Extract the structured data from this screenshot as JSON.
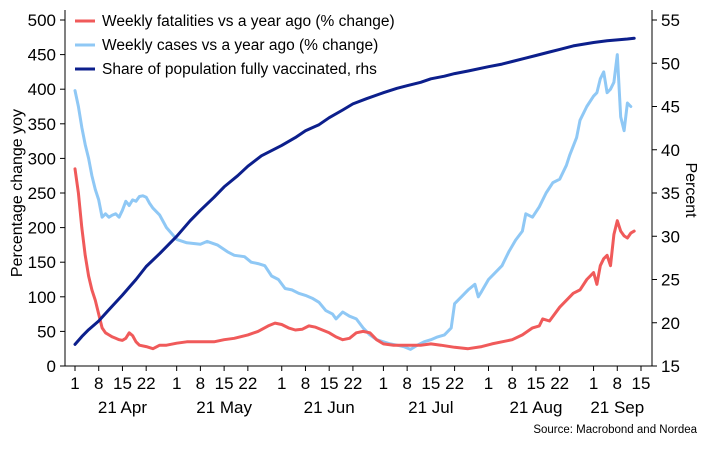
{
  "chart_data": {
    "type": "line",
    "source": "Source: Macrobond and Nordea",
    "ylabel": "Percentage change yoy",
    "ylabel_right": "Percent",
    "ylim": [
      0,
      500
    ],
    "ylim_right": [
      15,
      55
    ],
    "yticks": [
      0,
      50,
      100,
      150,
      200,
      250,
      300,
      350,
      400,
      450,
      500
    ],
    "yticks_right": [
      15,
      20,
      25,
      30,
      35,
      40,
      45,
      50,
      55
    ],
    "xlim": [
      "2021-03-31",
      "2021-09-16"
    ],
    "x_day_ticks": [
      {
        "date": "2021-04-01",
        "label": "1"
      },
      {
        "date": "2021-04-08",
        "label": "8"
      },
      {
        "date": "2021-04-15",
        "label": "15"
      },
      {
        "date": "2021-04-22",
        "label": "22"
      },
      {
        "date": "2021-05-01",
        "label": "1"
      },
      {
        "date": "2021-05-08",
        "label": "8"
      },
      {
        "date": "2021-05-15",
        "label": "15"
      },
      {
        "date": "2021-05-22",
        "label": "22"
      },
      {
        "date": "2021-06-01",
        "label": "1"
      },
      {
        "date": "2021-06-08",
        "label": "8"
      },
      {
        "date": "2021-06-15",
        "label": "15"
      },
      {
        "date": "2021-06-22",
        "label": "22"
      },
      {
        "date": "2021-07-01",
        "label": "1"
      },
      {
        "date": "2021-07-08",
        "label": "8"
      },
      {
        "date": "2021-07-15",
        "label": "15"
      },
      {
        "date": "2021-07-22",
        "label": "22"
      },
      {
        "date": "2021-08-01",
        "label": "1"
      },
      {
        "date": "2021-08-08",
        "label": "8"
      },
      {
        "date": "2021-08-15",
        "label": "15"
      },
      {
        "date": "2021-08-22",
        "label": "22"
      },
      {
        "date": "2021-09-01",
        "label": "1"
      },
      {
        "date": "2021-09-08",
        "label": "8"
      },
      {
        "date": "2021-09-15",
        "label": "15"
      }
    ],
    "x_month_labels": [
      {
        "date": "2021-04-15",
        "label": "21 Apr"
      },
      {
        "date": "2021-05-15",
        "label": "21 May"
      },
      {
        "date": "2021-06-15",
        "label": "21 Jun"
      },
      {
        "date": "2021-07-15",
        "label": "21 Jul"
      },
      {
        "date": "2021-08-15",
        "label": "21 Aug"
      },
      {
        "date": "2021-09-08",
        "label": "21 Sep"
      }
    ],
    "legend_position": "top-left",
    "series": [
      {
        "name": "Weekly fatalities vs a year ago (% change)",
        "color": "#f05a5a",
        "axis": "left",
        "points": [
          [
            "2021-04-01",
            285
          ],
          [
            "2021-04-02",
            250
          ],
          [
            "2021-04-03",
            200
          ],
          [
            "2021-04-04",
            160
          ],
          [
            "2021-04-05",
            130
          ],
          [
            "2021-04-06",
            110
          ],
          [
            "2021-04-07",
            95
          ],
          [
            "2021-04-08",
            75
          ],
          [
            "2021-04-09",
            55
          ],
          [
            "2021-04-10",
            48
          ],
          [
            "2021-04-11",
            45
          ],
          [
            "2021-04-12",
            42
          ],
          [
            "2021-04-13",
            40
          ],
          [
            "2021-04-14",
            38
          ],
          [
            "2021-04-15",
            37
          ],
          [
            "2021-04-16",
            40
          ],
          [
            "2021-04-17",
            48
          ],
          [
            "2021-04-18",
            44
          ],
          [
            "2021-04-19",
            35
          ],
          [
            "2021-04-20",
            30
          ],
          [
            "2021-04-22",
            28
          ],
          [
            "2021-04-24",
            25
          ],
          [
            "2021-04-26",
            30
          ],
          [
            "2021-04-28",
            30
          ],
          [
            "2021-05-01",
            33
          ],
          [
            "2021-05-04",
            35
          ],
          [
            "2021-05-08",
            35
          ],
          [
            "2021-05-12",
            35
          ],
          [
            "2021-05-15",
            38
          ],
          [
            "2021-05-18",
            40
          ],
          [
            "2021-05-22",
            45
          ],
          [
            "2021-05-25",
            50
          ],
          [
            "2021-05-28",
            58
          ],
          [
            "2021-05-30",
            62
          ],
          [
            "2021-06-01",
            60
          ],
          [
            "2021-06-03",
            55
          ],
          [
            "2021-06-05",
            52
          ],
          [
            "2021-06-07",
            53
          ],
          [
            "2021-06-09",
            58
          ],
          [
            "2021-06-11",
            56
          ],
          [
            "2021-06-13",
            52
          ],
          [
            "2021-06-15",
            48
          ],
          [
            "2021-06-17",
            42
          ],
          [
            "2021-06-19",
            38
          ],
          [
            "2021-06-21",
            40
          ],
          [
            "2021-06-23",
            48
          ],
          [
            "2021-06-25",
            50
          ],
          [
            "2021-06-27",
            48
          ],
          [
            "2021-06-29",
            38
          ],
          [
            "2021-07-01",
            32
          ],
          [
            "2021-07-04",
            30
          ],
          [
            "2021-07-08",
            30
          ],
          [
            "2021-07-12",
            30
          ],
          [
            "2021-07-15",
            32
          ],
          [
            "2021-07-18",
            30
          ],
          [
            "2021-07-22",
            27
          ],
          [
            "2021-07-26",
            25
          ],
          [
            "2021-07-30",
            28
          ],
          [
            "2021-08-02",
            32
          ],
          [
            "2021-08-05",
            35
          ],
          [
            "2021-08-08",
            38
          ],
          [
            "2021-08-11",
            45
          ],
          [
            "2021-08-14",
            55
          ],
          [
            "2021-08-16",
            58
          ],
          [
            "2021-08-17",
            68
          ],
          [
            "2021-08-19",
            65
          ],
          [
            "2021-08-22",
            85
          ],
          [
            "2021-08-24",
            95
          ],
          [
            "2021-08-26",
            105
          ],
          [
            "2021-08-28",
            110
          ],
          [
            "2021-08-30",
            125
          ],
          [
            "2021-09-01",
            135
          ],
          [
            "2021-09-02",
            118
          ],
          [
            "2021-09-03",
            145
          ],
          [
            "2021-09-04",
            155
          ],
          [
            "2021-09-05",
            160
          ],
          [
            "2021-09-06",
            145
          ],
          [
            "2021-09-07",
            190
          ],
          [
            "2021-09-08",
            210
          ],
          [
            "2021-09-09",
            195
          ],
          [
            "2021-09-10",
            188
          ],
          [
            "2021-09-11",
            185
          ],
          [
            "2021-09-12",
            192
          ],
          [
            "2021-09-13",
            195
          ]
        ]
      },
      {
        "name": "Weekly cases vs a year ago (% change)",
        "color": "#8fc8f5",
        "axis": "left",
        "points": [
          [
            "2021-04-01",
            398
          ],
          [
            "2021-04-02",
            375
          ],
          [
            "2021-04-03",
            345
          ],
          [
            "2021-04-04",
            320
          ],
          [
            "2021-04-05",
            300
          ],
          [
            "2021-04-06",
            275
          ],
          [
            "2021-04-07",
            255
          ],
          [
            "2021-04-08",
            240
          ],
          [
            "2021-04-09",
            215
          ],
          [
            "2021-04-10",
            220
          ],
          [
            "2021-04-11",
            215
          ],
          [
            "2021-04-12",
            218
          ],
          [
            "2021-04-13",
            220
          ],
          [
            "2021-04-14",
            215
          ],
          [
            "2021-04-15",
            225
          ],
          [
            "2021-04-16",
            238
          ],
          [
            "2021-04-17",
            232
          ],
          [
            "2021-04-18",
            240
          ],
          [
            "2021-04-19",
            238
          ],
          [
            "2021-04-20",
            245
          ],
          [
            "2021-04-21",
            246
          ],
          [
            "2021-04-22",
            244
          ],
          [
            "2021-04-23",
            235
          ],
          [
            "2021-04-24",
            228
          ],
          [
            "2021-04-26",
            218
          ],
          [
            "2021-04-28",
            200
          ],
          [
            "2021-05-01",
            183
          ],
          [
            "2021-05-04",
            178
          ],
          [
            "2021-05-08",
            176
          ],
          [
            "2021-05-10",
            180
          ],
          [
            "2021-05-13",
            175
          ],
          [
            "2021-05-16",
            165
          ],
          [
            "2021-05-18",
            160
          ],
          [
            "2021-05-21",
            158
          ],
          [
            "2021-05-23",
            150
          ],
          [
            "2021-05-25",
            148
          ],
          [
            "2021-05-27",
            145
          ],
          [
            "2021-05-29",
            130
          ],
          [
            "2021-05-31",
            125
          ],
          [
            "2021-06-02",
            112
          ],
          [
            "2021-06-04",
            110
          ],
          [
            "2021-06-06",
            105
          ],
          [
            "2021-06-08",
            102
          ],
          [
            "2021-06-10",
            98
          ],
          [
            "2021-06-12",
            92
          ],
          [
            "2021-06-14",
            80
          ],
          [
            "2021-06-16",
            75
          ],
          [
            "2021-06-17",
            68
          ],
          [
            "2021-06-19",
            78
          ],
          [
            "2021-06-21",
            72
          ],
          [
            "2021-06-23",
            68
          ],
          [
            "2021-06-25",
            55
          ],
          [
            "2021-06-27",
            45
          ],
          [
            "2021-06-29",
            38
          ],
          [
            "2021-07-01",
            35
          ],
          [
            "2021-07-03",
            32
          ],
          [
            "2021-07-05",
            30
          ],
          [
            "2021-07-07",
            28
          ],
          [
            "2021-07-09",
            24
          ],
          [
            "2021-07-11",
            30
          ],
          [
            "2021-07-13",
            35
          ],
          [
            "2021-07-15",
            38
          ],
          [
            "2021-07-17",
            42
          ],
          [
            "2021-07-19",
            45
          ],
          [
            "2021-07-21",
            55
          ],
          [
            "2021-07-22",
            90
          ],
          [
            "2021-07-24",
            100
          ],
          [
            "2021-07-26",
            110
          ],
          [
            "2021-07-28",
            118
          ],
          [
            "2021-07-29",
            100
          ],
          [
            "2021-07-30",
            108
          ],
          [
            "2021-08-01",
            125
          ],
          [
            "2021-08-03",
            135
          ],
          [
            "2021-08-05",
            145
          ],
          [
            "2021-08-07",
            165
          ],
          [
            "2021-08-09",
            182
          ],
          [
            "2021-08-11",
            195
          ],
          [
            "2021-08-12",
            220
          ],
          [
            "2021-08-14",
            215
          ],
          [
            "2021-08-16",
            230
          ],
          [
            "2021-08-18",
            250
          ],
          [
            "2021-08-20",
            265
          ],
          [
            "2021-08-22",
            270
          ],
          [
            "2021-08-24",
            290
          ],
          [
            "2021-08-25",
            305
          ],
          [
            "2021-08-27",
            330
          ],
          [
            "2021-08-28",
            355
          ],
          [
            "2021-08-30",
            375
          ],
          [
            "2021-09-01",
            390
          ],
          [
            "2021-09-02",
            395
          ],
          [
            "2021-09-03",
            415
          ],
          [
            "2021-09-04",
            425
          ],
          [
            "2021-09-05",
            395
          ],
          [
            "2021-09-06",
            400
          ],
          [
            "2021-09-07",
            410
          ],
          [
            "2021-09-08",
            450
          ],
          [
            "2021-09-09",
            360
          ],
          [
            "2021-09-10",
            340
          ],
          [
            "2021-09-11",
            380
          ],
          [
            "2021-09-12",
            375
          ]
        ]
      },
      {
        "name": "Share of population fully vaccinated, rhs",
        "color": "#0c1f8c",
        "axis": "right",
        "points": [
          [
            "2021-04-01",
            17.5
          ],
          [
            "2021-04-03",
            18.4
          ],
          [
            "2021-04-05",
            19.2
          ],
          [
            "2021-04-08",
            20.2
          ],
          [
            "2021-04-11",
            21.5
          ],
          [
            "2021-04-15",
            23.2
          ],
          [
            "2021-04-19",
            25.0
          ],
          [
            "2021-04-22",
            26.5
          ],
          [
            "2021-04-26",
            28.0
          ],
          [
            "2021-05-01",
            30.0
          ],
          [
            "2021-05-05",
            31.8
          ],
          [
            "2021-05-08",
            33.0
          ],
          [
            "2021-05-12",
            34.5
          ],
          [
            "2021-05-15",
            35.7
          ],
          [
            "2021-05-19",
            37.0
          ],
          [
            "2021-05-22",
            38.1
          ],
          [
            "2021-05-26",
            39.3
          ],
          [
            "2021-06-01",
            40.5
          ],
          [
            "2021-06-05",
            41.4
          ],
          [
            "2021-06-08",
            42.2
          ],
          [
            "2021-06-12",
            42.9
          ],
          [
            "2021-06-15",
            43.7
          ],
          [
            "2021-06-19",
            44.6
          ],
          [
            "2021-06-22",
            45.3
          ],
          [
            "2021-06-26",
            45.9
          ],
          [
            "2021-07-01",
            46.6
          ],
          [
            "2021-07-05",
            47.1
          ],
          [
            "2021-07-08",
            47.4
          ],
          [
            "2021-07-12",
            47.8
          ],
          [
            "2021-07-15",
            48.2
          ],
          [
            "2021-07-19",
            48.5
          ],
          [
            "2021-07-22",
            48.8
          ],
          [
            "2021-07-26",
            49.1
          ],
          [
            "2021-08-01",
            49.6
          ],
          [
            "2021-08-05",
            49.9
          ],
          [
            "2021-08-08",
            50.2
          ],
          [
            "2021-08-12",
            50.6
          ],
          [
            "2021-08-15",
            50.9
          ],
          [
            "2021-08-19",
            51.3
          ],
          [
            "2021-08-22",
            51.6
          ],
          [
            "2021-08-26",
            52.0
          ],
          [
            "2021-09-01",
            52.4
          ],
          [
            "2021-09-05",
            52.6
          ],
          [
            "2021-09-08",
            52.7
          ],
          [
            "2021-09-11",
            52.8
          ],
          [
            "2021-09-13",
            52.9
          ]
        ]
      }
    ]
  }
}
